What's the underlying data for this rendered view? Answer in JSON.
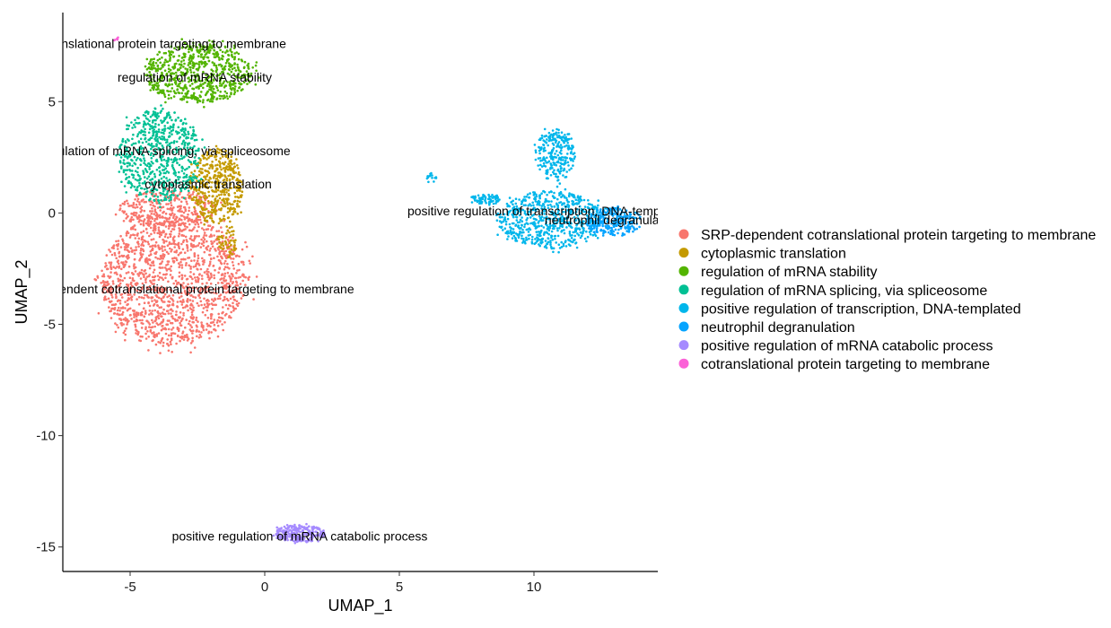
{
  "chart_data": {
    "type": "scatter",
    "title": "",
    "xlabel": "UMAP_1",
    "ylabel": "UMAP_2",
    "xlim": [
      -7.5,
      14.6
    ],
    "ylim": [
      -16.1,
      9.0
    ],
    "x_ticks": [
      -5,
      0,
      5,
      10
    ],
    "y_ticks": [
      -15,
      -10,
      -5,
      0,
      5
    ],
    "grid": false,
    "legend": "right",
    "series": [
      {
        "name": "SRP-dependent cotranslational protein targeting to membrane",
        "color": "#F8766D",
        "label": "SRP-dependent cotranslational protein targeting to membrane",
        "label_position": [
          -3.1,
          -3.4
        ],
        "clusters": [
          {
            "cx": -3.4,
            "cy": -3.0,
            "rx": 2.7,
            "ry": 2.9,
            "n": 1500
          },
          {
            "cx": -3.6,
            "cy": 0.2,
            "rx": 1.8,
            "ry": 0.8,
            "n": 300
          }
        ]
      },
      {
        "name": "cytoplasmic translation",
        "color": "#C49A00",
        "label": "cytoplasmic translation",
        "label_position": [
          -2.1,
          1.3
        ],
        "clusters": [
          {
            "cx": -1.8,
            "cy": 1.2,
            "rx": 1.0,
            "ry": 1.7,
            "n": 450
          },
          {
            "cx": -1.4,
            "cy": -1.3,
            "rx": 0.35,
            "ry": 0.7,
            "n": 50
          }
        ]
      },
      {
        "name": "regulation of mRNA stability",
        "color": "#53B400",
        "label": "regulation of mRNA stability",
        "label_position": [
          -2.6,
          6.1
        ],
        "clusters": [
          {
            "cx": -2.5,
            "cy": 6.3,
            "rx": 2.0,
            "ry": 1.35,
            "n": 700
          }
        ]
      },
      {
        "name": "regulation of mRNA splicing, via spliceosome",
        "color": "#00C094",
        "label": "regulation of mRNA splicing, via spliceosome",
        "label_position": [
          -3.7,
          2.8
        ],
        "clusters": [
          {
            "cx": -3.9,
            "cy": 2.6,
            "rx": 1.5,
            "ry": 2.1,
            "n": 650
          }
        ]
      },
      {
        "name": "positive regulation of transcription, DNA-templated",
        "color": "#00B6EB",
        "label": "positive regulation of transcription, DNA-templated",
        "label_position": [
          10.5,
          0.1
        ],
        "clusters": [
          {
            "cx": 10.6,
            "cy": -0.3,
            "rx": 1.9,
            "ry": 1.3,
            "n": 650
          },
          {
            "cx": 10.8,
            "cy": 2.6,
            "rx": 0.75,
            "ry": 1.2,
            "n": 250
          },
          {
            "cx": 8.2,
            "cy": 0.6,
            "rx": 0.6,
            "ry": 0.25,
            "n": 70
          },
          {
            "cx": 6.2,
            "cy": 1.6,
            "rx": 0.18,
            "ry": 0.22,
            "n": 15
          }
        ]
      },
      {
        "name": "neutrophil degranulation",
        "color": "#06A4FF",
        "label": "neutrophil degranulation",
        "label_position": [
          12.9,
          -0.3
        ],
        "clusters": [
          {
            "cx": 12.9,
            "cy": -0.4,
            "rx": 0.95,
            "ry": 0.65,
            "n": 260
          }
        ]
      },
      {
        "name": "positive regulation of mRNA catabolic process",
        "color": "#A58AFF",
        "label": "positive regulation of mRNA catabolic process",
        "label_position": [
          1.3,
          -14.5
        ],
        "clusters": [
          {
            "cx": 1.3,
            "cy": -14.4,
            "rx": 0.95,
            "ry": 0.38,
            "n": 260
          }
        ]
      },
      {
        "name": "cotranslational protein targeting to membrane",
        "color": "#FB61D7",
        "label": "cotranslational protein targeting to membrane",
        "label_position": [
          -3.9,
          7.6
        ],
        "clusters": [
          {
            "cx": -5.6,
            "cy": 7.8,
            "rx": 0.18,
            "ry": 0.1,
            "n": 6
          }
        ]
      }
    ]
  }
}
